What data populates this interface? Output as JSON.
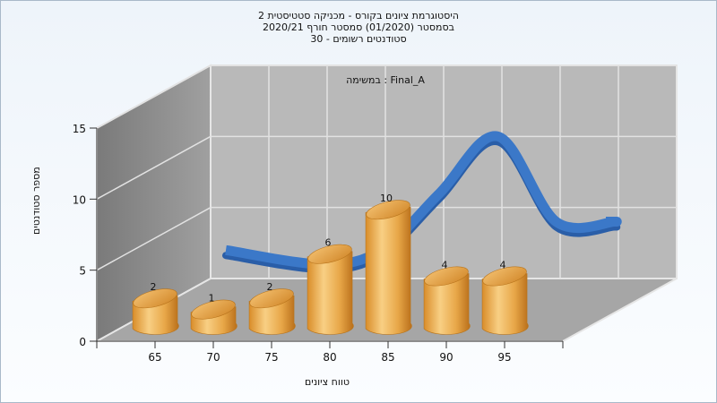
{
  "header": {
    "line1": "היסטוגרמת ציונים בקורס - מכניקה סטטיסטית 2",
    "line2": "בסמסטר (01/2020) סמסטר חורף 2020/21",
    "line3": "סטודנטים רשומים - 30"
  },
  "chart_data": {
    "type": "bar",
    "legend_text": "במשימה : Final_A",
    "xlabel": "טווח ציונים",
    "ylabel": "מספר סטודנטים",
    "categories": [
      "65",
      "70",
      "75",
      "80",
      "85",
      "90",
      "95"
    ],
    "values": [
      2,
      1,
      2,
      6,
      10,
      4,
      4
    ],
    "ylim": [
      0,
      15
    ],
    "yticks": [
      0,
      5,
      10,
      15
    ],
    "grid": true,
    "colors": {
      "bar": "#e8a748",
      "curve": "#3b78c8",
      "back_wall": "#b9b9b9",
      "side_wall": "#8d8d8d",
      "floor": "#a6a6a6"
    }
  }
}
